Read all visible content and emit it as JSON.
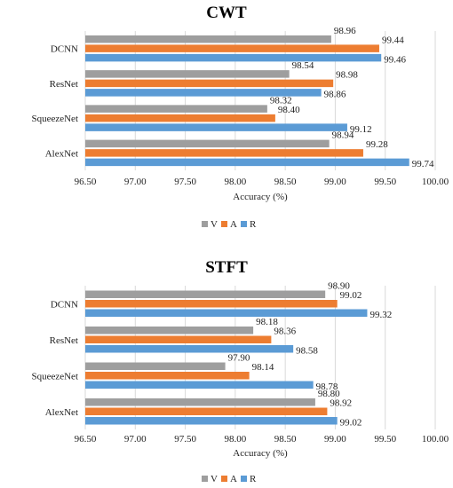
{
  "chart_data": [
    {
      "type": "bar",
      "orientation": "horizontal",
      "title": "CWT",
      "xlabel": "Accuracy (%)",
      "xlim": [
        96.5,
        100.0
      ],
      "xticks": [
        "96.50",
        "97.00",
        "97.50",
        "98.00",
        "98.50",
        "99.00",
        "99.50",
        "100.00"
      ],
      "categories": [
        "DCNN",
        "ResNet",
        "SqueezeNet",
        "AlexNet"
      ],
      "series": [
        {
          "name": "V",
          "color": "#9e9e9e",
          "values": [
            98.96,
            98.54,
            98.32,
            98.94
          ],
          "labels": [
            "98.96",
            "98.54",
            "98.32",
            "98.94"
          ]
        },
        {
          "name": "A",
          "color": "#ed7d31",
          "values": [
            99.44,
            98.98,
            98.4,
            99.28
          ],
          "labels": [
            "99.44",
            "98.98",
            "98.40",
            "99.28"
          ]
        },
        {
          "name": "R",
          "color": "#5b9bd5",
          "values": [
            99.46,
            98.86,
            99.12,
            99.74
          ],
          "labels": [
            "99.46",
            "98.86",
            "99.12",
            "99.74"
          ]
        }
      ],
      "grid": true,
      "legend": "bottom"
    },
    {
      "type": "bar",
      "orientation": "horizontal",
      "title": "STFT",
      "xlabel": "Accuracy (%)",
      "xlim": [
        96.5,
        100.0
      ],
      "xticks": [
        "96.50",
        "97.00",
        "97.50",
        "98.00",
        "98.50",
        "99.00",
        "99.50",
        "100.00"
      ],
      "categories": [
        "DCNN",
        "ResNet",
        "SqueezeNet",
        "AlexNet"
      ],
      "series": [
        {
          "name": "V",
          "color": "#9e9e9e",
          "values": [
            98.9,
            98.18,
            97.9,
            98.8
          ],
          "labels": [
            "98.90",
            "98.18",
            "97.90",
            "98.80"
          ]
        },
        {
          "name": "A",
          "color": "#ed7d31",
          "values": [
            99.02,
            98.36,
            98.14,
            98.92
          ],
          "labels": [
            "99.02",
            "98.36",
            "98.14",
            "98.92"
          ]
        },
        {
          "name": "R",
          "color": "#5b9bd5",
          "values": [
            99.32,
            98.58,
            98.78,
            99.02
          ],
          "labels": [
            "99.32",
            "98.58",
            "98.78",
            "99.02"
          ]
        }
      ],
      "grid": true,
      "legend": "bottom"
    }
  ]
}
